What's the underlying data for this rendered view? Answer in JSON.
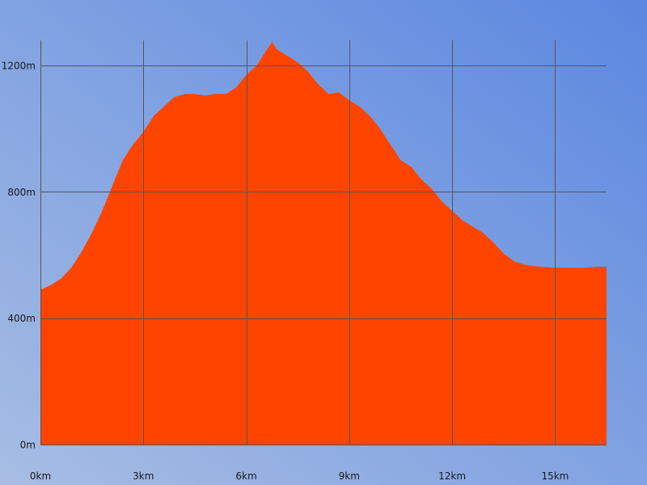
{
  "chart_data": {
    "type": "area",
    "title": "",
    "xlabel": "",
    "ylabel": "",
    "x_unit": "km",
    "y_unit": "m",
    "xlim": [
      0,
      16.5
    ],
    "ylim": [
      0,
      1200
    ],
    "x_ticks": [
      {
        "value": 0,
        "label": "0km"
      },
      {
        "value": 3,
        "label": "3km"
      },
      {
        "value": 6,
        "label": "6km"
      },
      {
        "value": 9,
        "label": "9km"
      },
      {
        "value": 12,
        "label": "12km"
      },
      {
        "value": 15,
        "label": "15km"
      }
    ],
    "y_ticks": [
      {
        "value": 0,
        "label": "0m"
      },
      {
        "value": 400,
        "label": "400m"
      },
      {
        "value": 800,
        "label": "800m"
      },
      {
        "value": 1200,
        "label": "1200m"
      }
    ],
    "grid": true,
    "legend": "none",
    "series": [
      {
        "color": "#ff4400",
        "x": [
          0,
          0.3,
          0.6,
          0.9,
          1.2,
          1.5,
          1.8,
          2.1,
          2.4,
          2.7,
          3.0,
          3.3,
          3.6,
          3.9,
          4.2,
          4.5,
          4.8,
          5.1,
          5.4,
          5.7,
          6.0,
          6.3,
          6.6,
          6.75,
          6.9,
          7.2,
          7.5,
          7.8,
          8.1,
          8.4,
          8.7,
          9.0,
          9.3,
          9.6,
          9.9,
          10.2,
          10.5,
          10.8,
          11.1,
          11.4,
          11.7,
          12.0,
          12.3,
          12.6,
          12.9,
          13.2,
          13.5,
          13.8,
          14.1,
          14.4,
          14.7,
          15.0,
          15.3,
          15.6,
          15.9,
          16.2,
          16.5
        ],
        "y": [
          490,
          505,
          525,
          560,
          610,
          670,
          740,
          820,
          900,
          950,
          990,
          1040,
          1070,
          1100,
          1110,
          1110,
          1105,
          1110,
          1110,
          1130,
          1170,
          1200,
          1250,
          1275,
          1250,
          1230,
          1210,
          1180,
          1140,
          1110,
          1115,
          1090,
          1070,
          1040,
          1000,
          950,
          900,
          880,
          840,
          810,
          770,
          740,
          710,
          690,
          670,
          640,
          605,
          580,
          570,
          565,
          562,
          560,
          560,
          560,
          560,
          563,
          563
        ]
      }
    ]
  },
  "colors": {
    "background_light": "#a7bde3",
    "background_dark": "#5b87e0",
    "area_fill": "#ff4400",
    "grid": "#555555"
  }
}
